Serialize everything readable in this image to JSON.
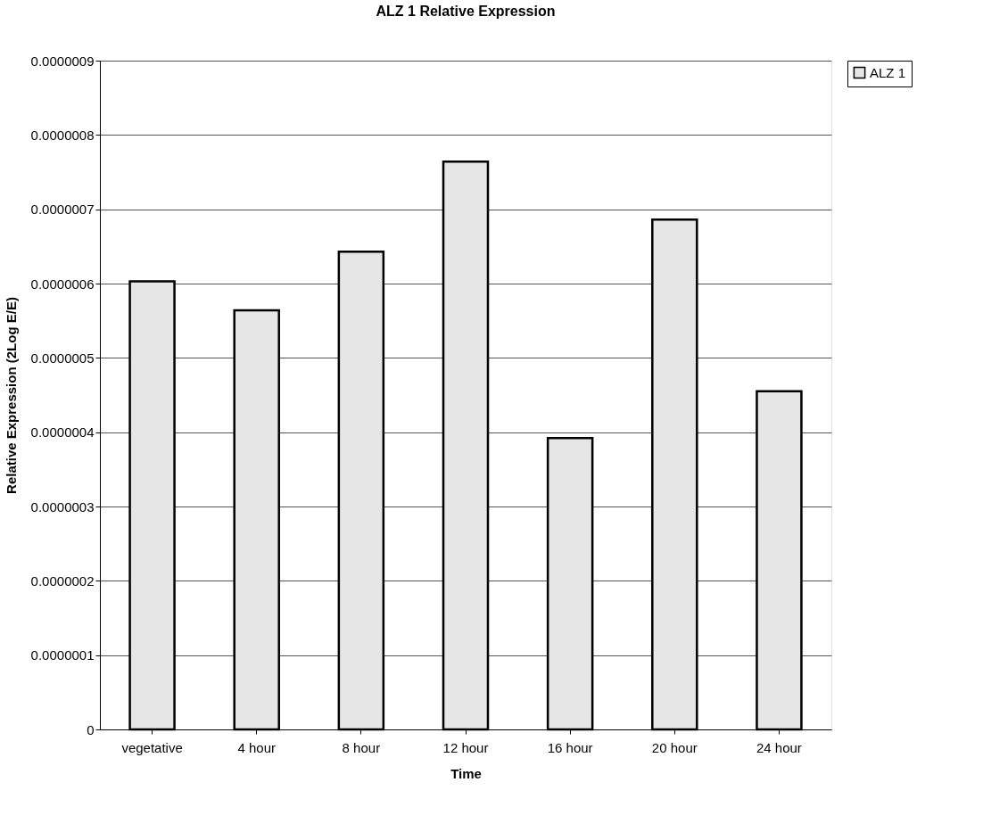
{
  "chart_data": {
    "type": "bar",
    "title": "ALZ 1 Relative Expression",
    "xlabel": "Time",
    "ylabel": "Relative Expression (2Log E/E)",
    "categories": [
      "vegetative",
      "4 hour",
      "8 hour",
      "12 hour",
      "16 hour",
      "20 hour",
      "24 hour"
    ],
    "series": [
      {
        "name": "ALZ 1",
        "color": "#e6e6e6",
        "values": [
          6.03e-07,
          5.64e-07,
          6.43e-07,
          7.64e-07,
          3.92e-07,
          6.86e-07,
          4.55e-07
        ]
      }
    ],
    "ylim": [
      0,
      9e-07
    ],
    "yticks": [
      0,
      {
        "value": 1e-07,
        "label": "0.0000001"
      },
      {
        "value": 2e-07,
        "label": "0.0000002"
      },
      {
        "value": 3e-07,
        "label": "0.0000003"
      },
      {
        "value": 4e-07,
        "label": "0.0000004"
      },
      {
        "value": 5e-07,
        "label": "0.0000005"
      },
      {
        "value": 6e-07,
        "label": "0.0000006"
      },
      {
        "value": 7e-07,
        "label": "0.0000007"
      },
      {
        "value": 8e-07,
        "label": "0.0000008"
      },
      {
        "value": 9e-07,
        "label": "0.0000009"
      }
    ],
    "grid": "y",
    "legend": "right"
  }
}
